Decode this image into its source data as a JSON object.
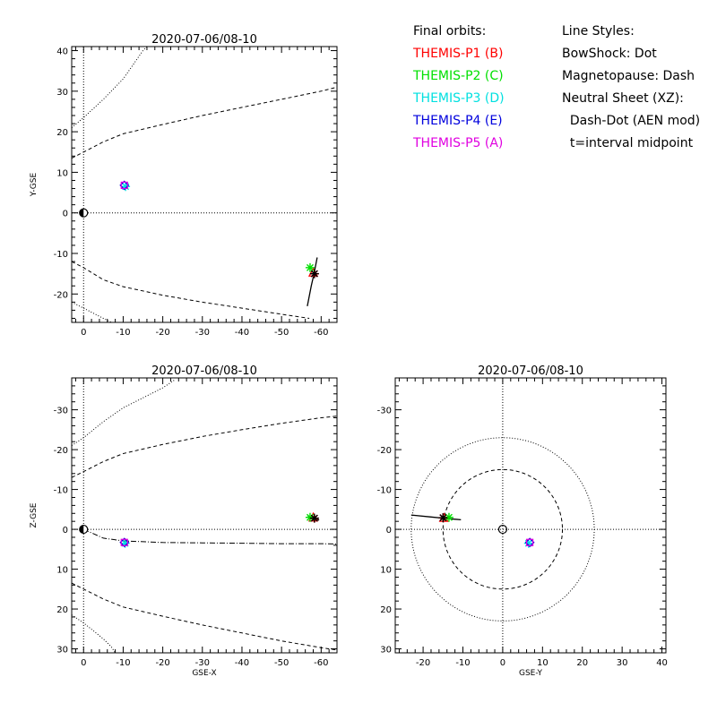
{
  "colors": {
    "P1": "#ff0000",
    "P2": "#00e000",
    "P3": "#00e0e0",
    "P4": "#0000dd",
    "P5": "#e000e0",
    "axes": "#000000",
    "background": "#ffffff"
  },
  "legend_orbits": {
    "title": "Final orbits:",
    "items": [
      {
        "label": "THEMIS-P1 (B)",
        "color": "#ff0000"
      },
      {
        "label": "THEMIS-P2 (C)",
        "color": "#00e000"
      },
      {
        "label": "THEMIS-P3 (D)",
        "color": "#00e0e0"
      },
      {
        "label": "THEMIS-P4 (E)",
        "color": "#0000dd"
      },
      {
        "label": "THEMIS-P5 (A)",
        "color": "#e000e0"
      }
    ]
  },
  "legend_styles": {
    "title": "Line Styles:",
    "lines": [
      "BowShock: Dot",
      "Magnetopause: Dash",
      "Neutral Sheet (XZ):",
      "  Dash-Dot (AEN mod)",
      "  t=interval midpoint"
    ]
  },
  "chart_data": [
    {
      "type": "scatter",
      "title": "2020-07-06/08-10",
      "xlabel": "",
      "ylabel": "Y-GSE",
      "xlim": [
        3,
        -64
      ],
      "ylim": [
        41,
        -27
      ],
      "xticks": [
        0,
        -10,
        -20,
        -30,
        -40,
        -50,
        -60
      ],
      "xtick_labels": [
        "0",
        "-10",
        "-20",
        "-30",
        "-40",
        "-50",
        "-60"
      ],
      "yticks": [
        -20,
        -10,
        0,
        10,
        20,
        30,
        40
      ],
      "ytick_labels": [
        "-20",
        "-10",
        "0",
        "10",
        "20",
        "30",
        "40"
      ],
      "earth": [
        0,
        0
      ],
      "reference_lines": {
        "x": 0,
        "y": 0
      },
      "curves": [
        {
          "style": "dash",
          "points": [
            [
              3,
              -12
            ],
            [
              0,
              -13.5
            ],
            [
              -5,
              -16.5
            ],
            [
              -10,
              -18.2
            ],
            [
              -20,
              -20.3
            ],
            [
              -30,
              -22
            ],
            [
              -40,
              -23.5
            ],
            [
              -50,
              -25
            ],
            [
              -57,
              -26
            ]
          ]
        },
        {
          "style": "dash",
          "points": [
            [
              3,
              13.5
            ],
            [
              0,
              15
            ],
            [
              -5,
              17.5
            ],
            [
              -10,
              19.5
            ],
            [
              -20,
              21.8
            ],
            [
              -30,
              24
            ],
            [
              -40,
              26
            ],
            [
              -50,
              28
            ],
            [
              -60,
              30
            ],
            [
              -64,
              31
            ]
          ]
        },
        {
          "style": "dot",
          "points": [
            [
              3,
              -22
            ],
            [
              0,
              -23.5
            ],
            [
              -5,
              -26
            ],
            [
              -7,
              -27
            ]
          ]
        },
        {
          "style": "dot",
          "points": [
            [
              3,
              21
            ],
            [
              0,
              23.5
            ],
            [
              -5,
              28
            ],
            [
              -10,
              33
            ],
            [
              -15,
              40
            ],
            [
              -16,
              41
            ]
          ]
        }
      ],
      "trajectories": [
        {
          "name": "THEMIS-P1 (B)",
          "points": [
            [
              -56.5,
              -23
            ],
            [
              -57.5,
              -18
            ],
            [
              -58.2,
              -15
            ],
            [
              -59,
              -11
            ]
          ]
        }
      ],
      "markers": [
        {
          "name": "THEMIS-P1 (B)",
          "symbol": "triangle",
          "x": -58,
          "y": -14.8
        },
        {
          "name": "THEMIS-P2 (C)",
          "symbol": "star",
          "x": -57.2,
          "y": -13.5
        },
        {
          "name": "THEMIS-P1 (B)",
          "symbol": "star",
          "x": -58.3,
          "y": -15
        },
        {
          "name": "THEMIS-P3 (D)",
          "symbol": "star",
          "x": -10.6,
          "y": 6.5
        },
        {
          "name": "THEMIS-P4 (E)",
          "symbol": "diamond",
          "x": -10.3,
          "y": 6.8
        },
        {
          "name": "THEMIS-P5 (A)",
          "symbol": "square",
          "x": -10.3,
          "y": 6.8
        }
      ]
    },
    {
      "type": "scatter",
      "title": "2020-07-06/08-10",
      "xlabel": "GSE-X",
      "ylabel": "Z-GSE",
      "xlim": [
        3,
        -64
      ],
      "ylim": [
        -38,
        31
      ],
      "xticks": [
        0,
        -10,
        -20,
        -30,
        -40,
        -50,
        -60
      ],
      "xtick_labels": [
        "0",
        "-10",
        "-20",
        "-30",
        "-40",
        "-50",
        "-60"
      ],
      "yticks": [
        -30,
        -20,
        -10,
        0,
        10,
        20,
        30
      ],
      "ytick_labels": [
        "-30",
        "-20",
        "-10",
        "0",
        "10",
        "20",
        "30"
      ],
      "earth": [
        0,
        0
      ],
      "reference_lines": {
        "x": 0,
        "y": 0
      },
      "curves": [
        {
          "style": "dash",
          "points": [
            [
              3,
              13.5
            ],
            [
              0,
              15
            ],
            [
              -5,
              17.5
            ],
            [
              -10,
              19.5
            ],
            [
              -20,
              21.8
            ],
            [
              -30,
              24
            ],
            [
              -40,
              26
            ],
            [
              -50,
              28
            ],
            [
              -60,
              29.7
            ],
            [
              -64,
              30.3
            ]
          ]
        },
        {
          "style": "dash",
          "points": [
            [
              3,
              -13
            ],
            [
              0,
              -14.5
            ],
            [
              -5,
              -17
            ],
            [
              -10,
              -19
            ],
            [
              -20,
              -21.3
            ],
            [
              -30,
              -23.3
            ],
            [
              -40,
              -25
            ],
            [
              -50,
              -26.6
            ],
            [
              -60,
              -28
            ],
            [
              -64,
              -28.4
            ]
          ]
        },
        {
          "style": "dot",
          "points": [
            [
              3,
              21.5
            ],
            [
              0,
              23.5
            ],
            [
              -5,
              27.5
            ],
            [
              -7,
              29.5
            ],
            [
              -8,
              31
            ]
          ]
        },
        {
          "style": "dot",
          "points": [
            [
              3,
              -21
            ],
            [
              0,
              -23
            ],
            [
              -5,
              -27
            ],
            [
              -10,
              -30.5
            ],
            [
              -20,
              -35.5
            ],
            [
              -23,
              -37.5
            ]
          ]
        },
        {
          "style": "dashdot",
          "points": [
            [
              0,
              0
            ],
            [
              -5,
              2.2
            ],
            [
              -10,
              2.9
            ],
            [
              -20,
              3.3
            ],
            [
              -30,
              3.4
            ],
            [
              -40,
              3.5
            ],
            [
              -50,
              3.6
            ],
            [
              -60,
              3.6
            ],
            [
              -64,
              3.7
            ]
          ]
        }
      ],
      "trajectories": [
        {
          "name": "THEMIS-P1 (B)",
          "points": [
            [
              -56.5,
              -3.1
            ],
            [
              -58.3,
              -2.7
            ],
            [
              -59.5,
              -2.3
            ]
          ]
        }
      ],
      "markers": [
        {
          "name": "THEMIS-P1 (B)",
          "symbol": "triangle",
          "x": -58,
          "y": -2.9
        },
        {
          "name": "THEMIS-P2 (C)",
          "symbol": "star",
          "x": -57.2,
          "y": -3
        },
        {
          "name": "THEMIS-P1 (B)",
          "symbol": "star",
          "x": -58.3,
          "y": -2.8
        },
        {
          "name": "THEMIS-P3 (D)",
          "symbol": "star",
          "x": -10.5,
          "y": 3.5
        },
        {
          "name": "THEMIS-P4 (E)",
          "symbol": "diamond",
          "x": -10.3,
          "y": 3.3
        },
        {
          "name": "THEMIS-P5 (A)",
          "symbol": "square",
          "x": -10.3,
          "y": 3.3
        }
      ]
    },
    {
      "type": "scatter",
      "title": "2020-07-06/08-10",
      "xlabel": "GSE-Y",
      "ylabel": "",
      "xlim": [
        -27,
        41
      ],
      "ylim": [
        -38,
        31
      ],
      "xticks": [
        -20,
        -10,
        0,
        10,
        20,
        30,
        40
      ],
      "xtick_labels": [
        "-20",
        "-10",
        "0",
        "10",
        "20",
        "30",
        "40"
      ],
      "yticks": [
        -30,
        -20,
        -10,
        0,
        10,
        20,
        30
      ],
      "ytick_labels": [
        "-30",
        "-20",
        "-10",
        "0",
        "10",
        "20",
        "30"
      ],
      "earth_open": [
        0,
        0
      ],
      "reference_lines": {
        "x": 0,
        "y": 0
      },
      "circles": [
        {
          "style": "dash",
          "center": [
            0,
            0
          ],
          "radius": 15
        },
        {
          "style": "dot",
          "center": [
            0,
            0
          ],
          "radius": 23
        }
      ],
      "trajectories": [
        {
          "name": "THEMIS-P1 (B)",
          "points": [
            [
              -23,
              -3.6
            ],
            [
              -18,
              -3.1
            ],
            [
              -15,
              -2.8
            ],
            [
              -10.5,
              -2.4
            ]
          ]
        }
      ],
      "markers": [
        {
          "name": "THEMIS-P1 (B)",
          "symbol": "triangle",
          "x": -14.8,
          "y": -2.8
        },
        {
          "name": "THEMIS-P2 (C)",
          "symbol": "star",
          "x": -13.5,
          "y": -3
        },
        {
          "name": "THEMIS-P1 (B)",
          "symbol": "star",
          "x": -15,
          "y": -2.9
        },
        {
          "name": "THEMIS-P3 (D)",
          "symbol": "star",
          "x": 6.5,
          "y": 3.5
        },
        {
          "name": "THEMIS-P4 (E)",
          "symbol": "diamond",
          "x": 6.8,
          "y": 3.3
        },
        {
          "name": "THEMIS-P5 (A)",
          "symbol": "square",
          "x": 6.8,
          "y": 3.3
        }
      ]
    }
  ]
}
